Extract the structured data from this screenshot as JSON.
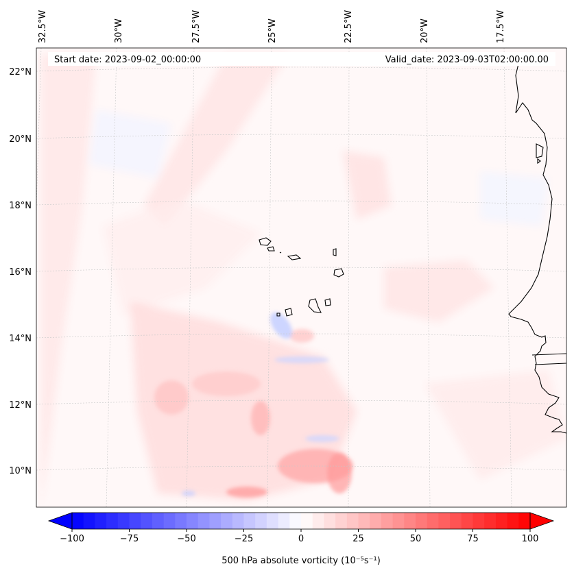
{
  "map": {
    "start_date": "Start date: 2023-09-02_00:00:00",
    "valid_date": "Valid_date: 2023-09-03T02:00:00.00",
    "lon_labels": [
      "32.5°W",
      "30°W",
      "27.5°W",
      "25°W",
      "22.5°W",
      "20°W",
      "17.5°W"
    ],
    "lat_labels": [
      "22°N",
      "20°N",
      "18°N",
      "16°N",
      "14°N",
      "12°N",
      "10°N"
    ],
    "field": "500 hPa absolute vorticity",
    "colors": {
      "negative": "#0000ff",
      "positive": "#ff0000",
      "neutral": "#ffffff",
      "coastline": "#000000",
      "gridline": "#c8c8c8"
    }
  },
  "colorbar": {
    "label": "500 hPa absolute vorticity (10⁻⁵s⁻¹)",
    "min": -100,
    "max": 100,
    "ticks": [
      "−100",
      "−75",
      "−50",
      "−25",
      "0",
      "25",
      "50",
      "75",
      "100"
    ],
    "extend": "both"
  }
}
